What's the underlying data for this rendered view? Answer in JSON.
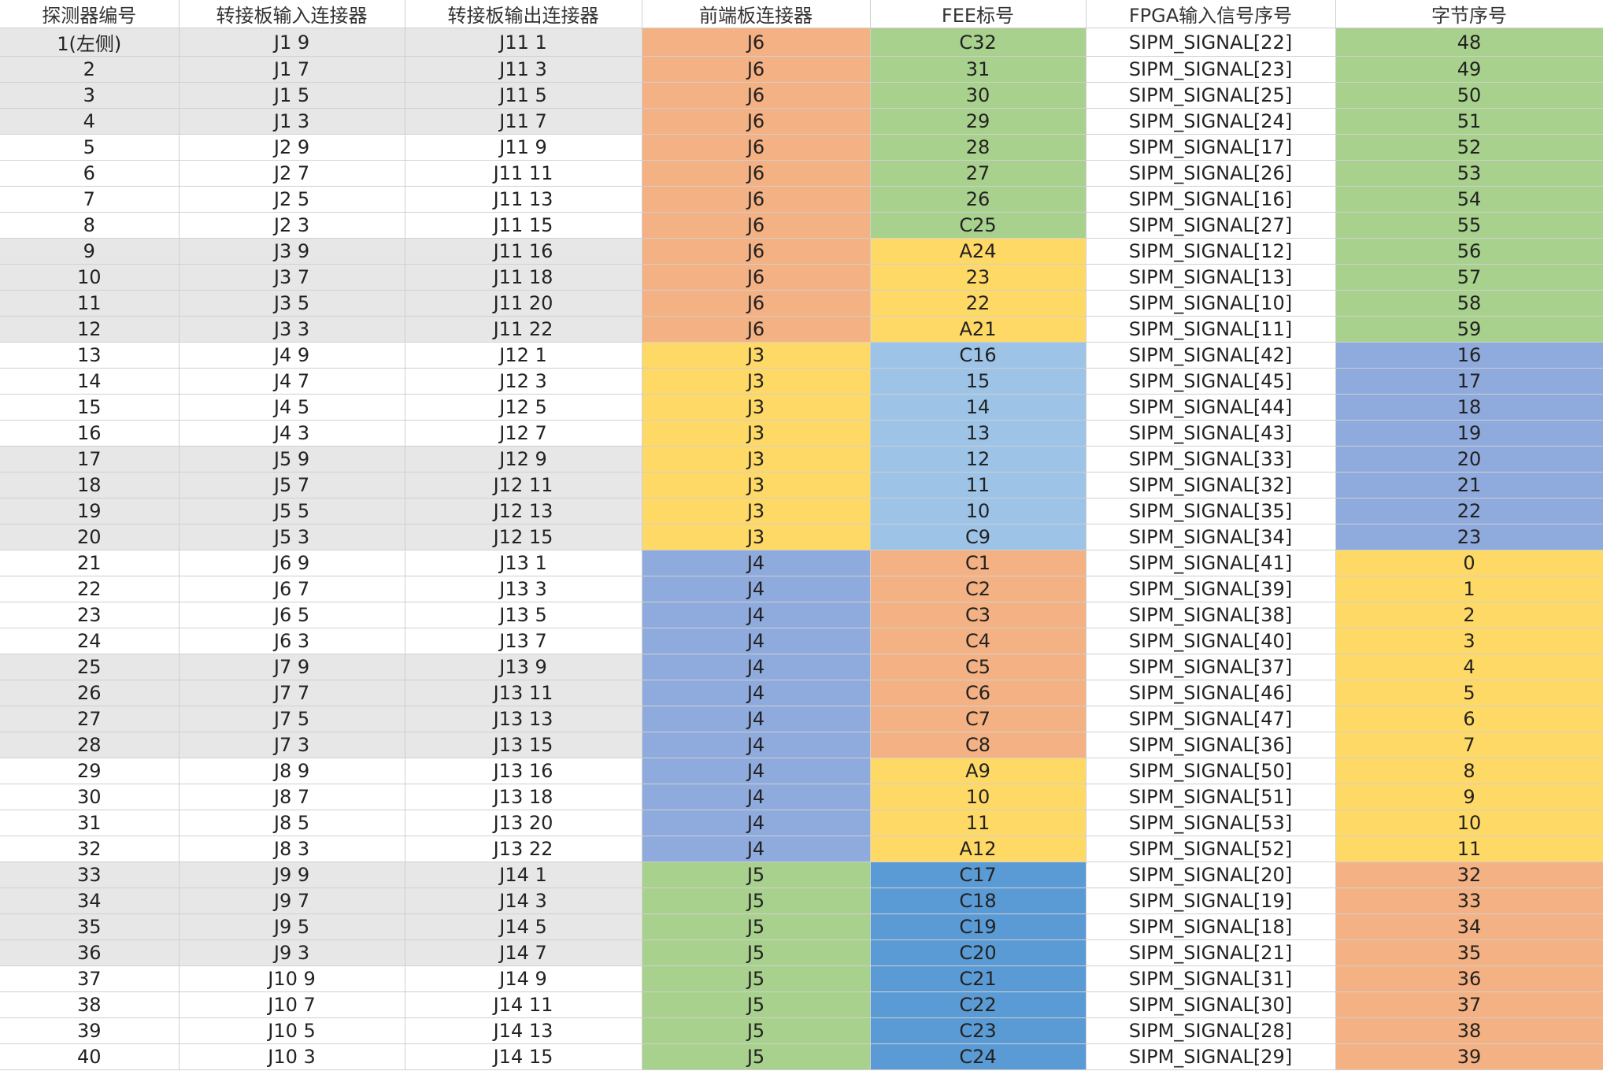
{
  "headers": [
    "探测器编号",
    "转接板输入连接器",
    "转接板输出连接器",
    "前端板连接器",
    "FEE标号",
    "FPGA输入信号序号",
    "字节序号"
  ],
  "colors": {
    "gray": "#e7e7e7",
    "white": "#ffffff",
    "orange": "#f4b183",
    "green": "#a9d18e",
    "yellow": "#ffd966",
    "light_blue": "#9dc3e6",
    "periwinkle": "#8faadc",
    "blue": "#5b9bd5"
  },
  "rows": [
    {
      "det": "1(左侧)",
      "in": "J1 9",
      "out": "J11 1",
      "fe": "J6",
      "fee": "C32",
      "fpga": "SIPM_SIGNAL[22]",
      "byte": "48",
      "bg": "gray",
      "fe_c": "orange",
      "fee_c": "green",
      "byte_c": "green"
    },
    {
      "det": "2",
      "in": "J1 7",
      "out": "J11 3",
      "fe": "J6",
      "fee": "31",
      "fpga": "SIPM_SIGNAL[23]",
      "byte": "49",
      "bg": "gray",
      "fe_c": "orange",
      "fee_c": "green",
      "byte_c": "green"
    },
    {
      "det": "3",
      "in": "J1 5",
      "out": "J11 5",
      "fe": "J6",
      "fee": "30",
      "fpga": "SIPM_SIGNAL[25]",
      "byte": "50",
      "bg": "gray",
      "fe_c": "orange",
      "fee_c": "green",
      "byte_c": "green"
    },
    {
      "det": "4",
      "in": "J1 3",
      "out": "J11 7",
      "fe": "J6",
      "fee": "29",
      "fpga": "SIPM_SIGNAL[24]",
      "byte": "51",
      "bg": "gray",
      "fe_c": "orange",
      "fee_c": "green",
      "byte_c": "green"
    },
    {
      "det": "5",
      "in": "J2 9",
      "out": "J11 9",
      "fe": "J6",
      "fee": "28",
      "fpga": "SIPM_SIGNAL[17]",
      "byte": "52",
      "bg": "white",
      "fe_c": "orange",
      "fee_c": "green",
      "byte_c": "green"
    },
    {
      "det": "6",
      "in": "J2 7",
      "out": "J11 11",
      "fe": "J6",
      "fee": "27",
      "fpga": "SIPM_SIGNAL[26]",
      "byte": "53",
      "bg": "white",
      "fe_c": "orange",
      "fee_c": "green",
      "byte_c": "green"
    },
    {
      "det": "7",
      "in": "J2 5",
      "out": "J11 13",
      "fe": "J6",
      "fee": "26",
      "fpga": "SIPM_SIGNAL[16]",
      "byte": "54",
      "bg": "white",
      "fe_c": "orange",
      "fee_c": "green",
      "byte_c": "green"
    },
    {
      "det": "8",
      "in": "J2 3",
      "out": "J11 15",
      "fe": "J6",
      "fee": "C25",
      "fpga": "SIPM_SIGNAL[27]",
      "byte": "55",
      "bg": "white",
      "fe_c": "orange",
      "fee_c": "green",
      "byte_c": "green"
    },
    {
      "det": "9",
      "in": "J3 9",
      "out": "J11 16",
      "fe": "J6",
      "fee": "A24",
      "fpga": "SIPM_SIGNAL[12]",
      "byte": "56",
      "bg": "gray",
      "fe_c": "orange",
      "fee_c": "yellow",
      "byte_c": "green"
    },
    {
      "det": "10",
      "in": "J3 7",
      "out": "J11 18",
      "fe": "J6",
      "fee": "23",
      "fpga": "SIPM_SIGNAL[13]",
      "byte": "57",
      "bg": "gray",
      "fe_c": "orange",
      "fee_c": "yellow",
      "byte_c": "green"
    },
    {
      "det": "11",
      "in": "J3 5",
      "out": "J11 20",
      "fe": "J6",
      "fee": "22",
      "fpga": "SIPM_SIGNAL[10]",
      "byte": "58",
      "bg": "gray",
      "fe_c": "orange",
      "fee_c": "yellow",
      "byte_c": "green"
    },
    {
      "det": "12",
      "in": "J3 3",
      "out": "J11 22",
      "fe": "J6",
      "fee": "A21",
      "fpga": "SIPM_SIGNAL[11]",
      "byte": "59",
      "bg": "gray",
      "fe_c": "orange",
      "fee_c": "yellow",
      "byte_c": "green"
    },
    {
      "det": "13",
      "in": "J4 9",
      "out": "J12 1",
      "fe": "J3",
      "fee": "C16",
      "fpga": "SIPM_SIGNAL[42]",
      "byte": "16",
      "bg": "white",
      "fe_c": "yellow",
      "fee_c": "light_blue",
      "byte_c": "periwinkle"
    },
    {
      "det": "14",
      "in": "J4 7",
      "out": "J12 3",
      "fe": "J3",
      "fee": "15",
      "fpga": "SIPM_SIGNAL[45]",
      "byte": "17",
      "bg": "white",
      "fe_c": "yellow",
      "fee_c": "light_blue",
      "byte_c": "periwinkle"
    },
    {
      "det": "15",
      "in": "J4 5",
      "out": "J12 5",
      "fe": "J3",
      "fee": "14",
      "fpga": "SIPM_SIGNAL[44]",
      "byte": "18",
      "bg": "white",
      "fe_c": "yellow",
      "fee_c": "light_blue",
      "byte_c": "periwinkle"
    },
    {
      "det": "16",
      "in": "J4 3",
      "out": "J12 7",
      "fe": "J3",
      "fee": "13",
      "fpga": "SIPM_SIGNAL[43]",
      "byte": "19",
      "bg": "white",
      "fe_c": "yellow",
      "fee_c": "light_blue",
      "byte_c": "periwinkle"
    },
    {
      "det": "17",
      "in": "J5 9",
      "out": "J12 9",
      "fe": "J3",
      "fee": "12",
      "fpga": "SIPM_SIGNAL[33]",
      "byte": "20",
      "bg": "gray",
      "fe_c": "yellow",
      "fee_c": "light_blue",
      "byte_c": "periwinkle"
    },
    {
      "det": "18",
      "in": "J5 7",
      "out": "J12 11",
      "fe": "J3",
      "fee": "11",
      "fpga": "SIPM_SIGNAL[32]",
      "byte": "21",
      "bg": "gray",
      "fe_c": "yellow",
      "fee_c": "light_blue",
      "byte_c": "periwinkle"
    },
    {
      "det": "19",
      "in": "J5 5",
      "out": "J12 13",
      "fe": "J3",
      "fee": "10",
      "fpga": "SIPM_SIGNAL[35]",
      "byte": "22",
      "bg": "gray",
      "fe_c": "yellow",
      "fee_c": "light_blue",
      "byte_c": "periwinkle"
    },
    {
      "det": "20",
      "in": "J5 3",
      "out": "J12 15",
      "fe": "J3",
      "fee": "C9",
      "fpga": "SIPM_SIGNAL[34]",
      "byte": "23",
      "bg": "gray",
      "fe_c": "yellow",
      "fee_c": "light_blue",
      "byte_c": "periwinkle"
    },
    {
      "det": "21",
      "in": "J6 9",
      "out": "J13 1",
      "fe": "J4",
      "fee": "C1",
      "fpga": "SIPM_SIGNAL[41]",
      "byte": "0",
      "bg": "white",
      "fe_c": "periwinkle",
      "fee_c": "orange",
      "byte_c": "yellow"
    },
    {
      "det": "22",
      "in": "J6 7",
      "out": "J13 3",
      "fe": "J4",
      "fee": "C2",
      "fpga": "SIPM_SIGNAL[39]",
      "byte": "1",
      "bg": "white",
      "fe_c": "periwinkle",
      "fee_c": "orange",
      "byte_c": "yellow"
    },
    {
      "det": "23",
      "in": "J6 5",
      "out": "J13 5",
      "fe": "J4",
      "fee": "C3",
      "fpga": "SIPM_SIGNAL[38]",
      "byte": "2",
      "bg": "white",
      "fe_c": "periwinkle",
      "fee_c": "orange",
      "byte_c": "yellow"
    },
    {
      "det": "24",
      "in": "J6 3",
      "out": "J13 7",
      "fe": "J4",
      "fee": "C4",
      "fpga": "SIPM_SIGNAL[40]",
      "byte": "3",
      "bg": "white",
      "fe_c": "periwinkle",
      "fee_c": "orange",
      "byte_c": "yellow"
    },
    {
      "det": "25",
      "in": "J7 9",
      "out": "J13 9",
      "fe": "J4",
      "fee": "C5",
      "fpga": "SIPM_SIGNAL[37]",
      "byte": "4",
      "bg": "gray",
      "fe_c": "periwinkle",
      "fee_c": "orange",
      "byte_c": "yellow"
    },
    {
      "det": "26",
      "in": "J7 7",
      "out": "J13 11",
      "fe": "J4",
      "fee": "C6",
      "fpga": "SIPM_SIGNAL[46]",
      "byte": "5",
      "bg": "gray",
      "fe_c": "periwinkle",
      "fee_c": "orange",
      "byte_c": "yellow"
    },
    {
      "det": "27",
      "in": "J7 5",
      "out": "J13 13",
      "fe": "J4",
      "fee": "C7",
      "fpga": "SIPM_SIGNAL[47]",
      "byte": "6",
      "bg": "gray",
      "fe_c": "periwinkle",
      "fee_c": "orange",
      "byte_c": "yellow"
    },
    {
      "det": "28",
      "in": "J7 3",
      "out": "J13 15",
      "fe": "J4",
      "fee": "C8",
      "fpga": "SIPM_SIGNAL[36]",
      "byte": "7",
      "bg": "gray",
      "fe_c": "periwinkle",
      "fee_c": "orange",
      "byte_c": "yellow"
    },
    {
      "det": "29",
      "in": "J8 9",
      "out": "J13 16",
      "fe": "J4",
      "fee": "A9",
      "fpga": "SIPM_SIGNAL[50]",
      "byte": "8",
      "bg": "white",
      "fe_c": "periwinkle",
      "fee_c": "yellow",
      "byte_c": "yellow"
    },
    {
      "det": "30",
      "in": "J8 7",
      "out": "J13 18",
      "fe": "J4",
      "fee": "10",
      "fpga": "SIPM_SIGNAL[51]",
      "byte": "9",
      "bg": "white",
      "fe_c": "periwinkle",
      "fee_c": "yellow",
      "byte_c": "yellow"
    },
    {
      "det": "31",
      "in": "J8 5",
      "out": "J13 20",
      "fe": "J4",
      "fee": "11",
      "fpga": "SIPM_SIGNAL[53]",
      "byte": "10",
      "bg": "white",
      "fe_c": "periwinkle",
      "fee_c": "yellow",
      "byte_c": "yellow"
    },
    {
      "det": "32",
      "in": "J8 3",
      "out": "J13 22",
      "fe": "J4",
      "fee": "A12",
      "fpga": "SIPM_SIGNAL[52]",
      "byte": "11",
      "bg": "white",
      "fe_c": "periwinkle",
      "fee_c": "yellow",
      "byte_c": "yellow"
    },
    {
      "det": "33",
      "in": "J9 9",
      "out": "J14 1",
      "fe": "J5",
      "fee": "C17",
      "fpga": "SIPM_SIGNAL[20]",
      "byte": "32",
      "bg": "gray",
      "fe_c": "green",
      "fee_c": "blue",
      "byte_c": "orange"
    },
    {
      "det": "34",
      "in": "J9 7",
      "out": "J14 3",
      "fe": "J5",
      "fee": "C18",
      "fpga": "SIPM_SIGNAL[19]",
      "byte": "33",
      "bg": "gray",
      "fe_c": "green",
      "fee_c": "blue",
      "byte_c": "orange"
    },
    {
      "det": "35",
      "in": "J9 5",
      "out": "J14 5",
      "fe": "J5",
      "fee": "C19",
      "fpga": "SIPM_SIGNAL[18]",
      "byte": "34",
      "bg": "gray",
      "fe_c": "green",
      "fee_c": "blue",
      "byte_c": "orange"
    },
    {
      "det": "36",
      "in": "J9 3",
      "out": "J14 7",
      "fe": "J5",
      "fee": "C20",
      "fpga": "SIPM_SIGNAL[21]",
      "byte": "35",
      "bg": "gray",
      "fe_c": "green",
      "fee_c": "blue",
      "byte_c": "orange"
    },
    {
      "det": "37",
      "in": "J10 9",
      "out": "J14 9",
      "fe": "J5",
      "fee": "C21",
      "fpga": "SIPM_SIGNAL[31]",
      "byte": "36",
      "bg": "white",
      "fe_c": "green",
      "fee_c": "blue",
      "byte_c": "orange"
    },
    {
      "det": "38",
      "in": "J10 7",
      "out": "J14 11",
      "fe": "J5",
      "fee": "C22",
      "fpga": "SIPM_SIGNAL[30]",
      "byte": "37",
      "bg": "white",
      "fe_c": "green",
      "fee_c": "blue",
      "byte_c": "orange"
    },
    {
      "det": "39",
      "in": "J10 5",
      "out": "J14 13",
      "fe": "J5",
      "fee": "C23",
      "fpga": "SIPM_SIGNAL[28]",
      "byte": "38",
      "bg": "white",
      "fe_c": "green",
      "fee_c": "blue",
      "byte_c": "orange"
    },
    {
      "det": "40",
      "in": "J10 3",
      "out": "J14 15",
      "fe": "J5",
      "fee": "C24",
      "fpga": "SIPM_SIGNAL[29]",
      "byte": "39",
      "bg": "white",
      "fe_c": "green",
      "fee_c": "blue",
      "byte_c": "orange"
    }
  ]
}
